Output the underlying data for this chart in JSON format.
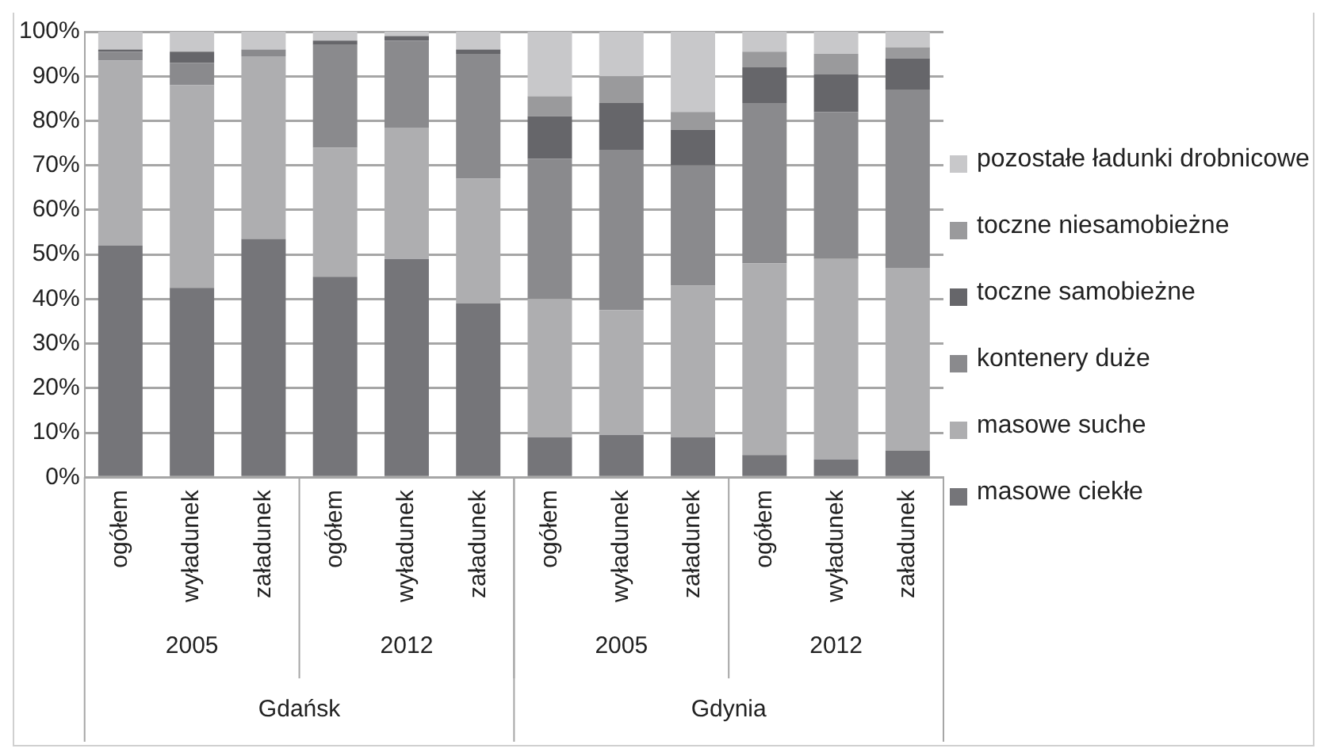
{
  "chart_data": {
    "type": "bar",
    "stacked": true,
    "categories": [
      "ogółem",
      "wyładunek",
      "załadunek",
      "ogółem",
      "wyładunek",
      "załadunek",
      "ogółem",
      "wyładunek",
      "załadunek",
      "ogółem",
      "wyładunek",
      "załadunek"
    ],
    "annotations": [
      "2005",
      "2012",
      "2005",
      "2012",
      "Gdańsk",
      "Gdynia"
    ],
    "series": [
      {
        "name": "masowe ciekłe",
        "color": "#757579",
        "values": [
          52,
          42.5,
          53.5,
          45,
          49,
          39,
          9,
          9.5,
          9,
          5,
          4,
          6
        ]
      },
      {
        "name": "masowe suche",
        "color": "#aeaeb0",
        "values": [
          41.5,
          45.5,
          41,
          29,
          29.5,
          28,
          31,
          28,
          34,
          43,
          45,
          41
        ]
      },
      {
        "name": "kontenery duże",
        "color": "#8a8a8d",
        "values": [
          2,
          5,
          1.5,
          23,
          19.5,
          28,
          31.5,
          36,
          27,
          36,
          33,
          40
        ]
      },
      {
        "name": "toczne samobieżne",
        "color": "#66666a",
        "values": [
          0.5,
          2.5,
          0,
          1,
          1,
          1,
          9.5,
          10.5,
          8,
          8,
          8.5,
          7
        ]
      },
      {
        "name": "toczne niesamobieżne",
        "color": "#9a9a9c",
        "values": [
          0,
          0,
          0,
          0,
          0,
          0,
          4.5,
          6,
          4,
          3.5,
          4.5,
          2.5
        ]
      },
      {
        "name": "pozostałe ładunki drobnicowe",
        "color": "#c8c8ca",
        "values": [
          4,
          4.5,
          4,
          2,
          1,
          4,
          14.5,
          10,
          18,
          4.5,
          5,
          3.5
        ]
      }
    ],
    "ylim": [
      0,
      100
    ],
    "yticks": [
      {
        "value": 0,
        "label": "0%"
      },
      {
        "value": 10,
        "label": "10%"
      },
      {
        "value": 20,
        "label": "20%"
      },
      {
        "value": 30,
        "label": "30%"
      },
      {
        "value": 40,
        "label": "40%"
      },
      {
        "value": 50,
        "label": "50%"
      },
      {
        "value": 60,
        "label": "60%"
      },
      {
        "value": 70,
        "label": "70%"
      },
      {
        "value": 80,
        "label": "80%"
      },
      {
        "value": 90,
        "label": "90%"
      },
      {
        "value": 100,
        "label": "100%"
      }
    ],
    "grid": "y",
    "legend": "right"
  }
}
